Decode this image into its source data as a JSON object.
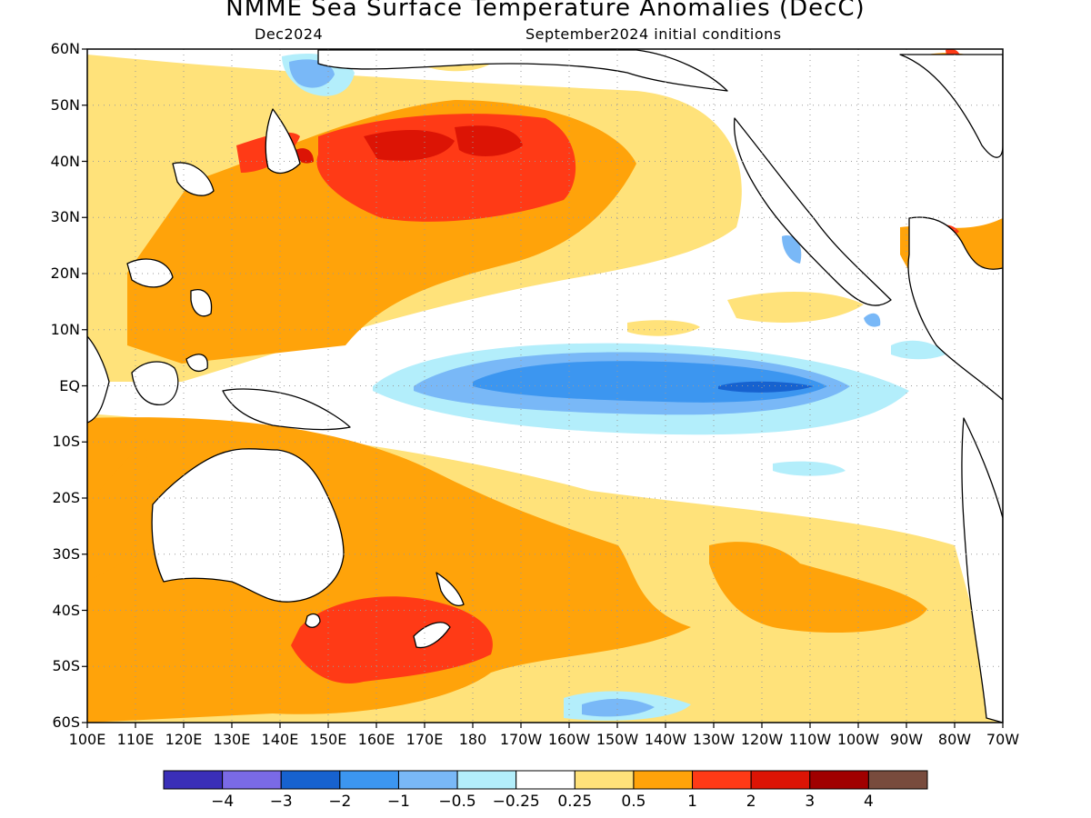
{
  "title": "NMME Sea Surface Temperature Anomalies (DecC)",
  "subtitle_left": "Dec2024",
  "subtitle_right": "September2024 initial conditions",
  "lat_labels": [
    "60N",
    "50N",
    "40N",
    "30N",
    "20N",
    "10N",
    "EQ",
    "10S",
    "20S",
    "30S",
    "40S",
    "50S",
    "60S"
  ],
  "lon_labels": [
    "100E",
    "110E",
    "120E",
    "130E",
    "140E",
    "150E",
    "160E",
    "170E",
    "180",
    "170W",
    "160W",
    "150W",
    "140W",
    "130W",
    "120W",
    "110W",
    "100W",
    "90W",
    "80W",
    "70W"
  ],
  "colorbar": {
    "colors": [
      "#3a2fb8",
      "#7a6ae6",
      "#1762cf",
      "#3c96f0",
      "#79b8f7",
      "#b3eefb",
      "#ffffff",
      "#ffe27a",
      "#ffa30a",
      "#ff3a16",
      "#dc1405",
      "#a00000",
      "#784b3d"
    ],
    "labels": [
      "−4",
      "−3",
      "−2",
      "−1",
      "−0.5",
      "−0.25",
      "0.25",
      "0.5",
      "1",
      "2",
      "3",
      "4"
    ]
  }
}
